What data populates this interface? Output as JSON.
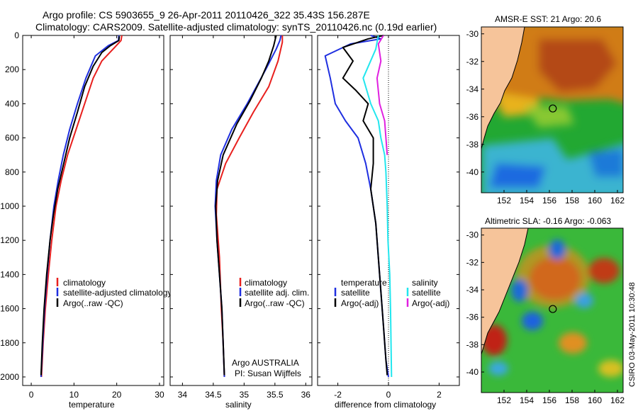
{
  "header": {
    "line1": "Argo profile: CS 5903655_9 26-Apr-2011 20110426_322 35.43S 156.287E",
    "line2": "Climatology: CARS2009. Satellite-adjusted climatology: synTS_20110426.nc (0.19d earlier)"
  },
  "side_stamp": "CSIRO 03-May-2011 10:30:48",
  "colors": {
    "climatology": "#e8201e",
    "satellite": "#1f2fe0",
    "argo": "#000000",
    "sal_satellite": "#22e6ee",
    "sal_argo": "#e020e0",
    "land": "#f6c49a",
    "coast": "#000000"
  },
  "chart_data": [
    {
      "type": "line",
      "id": "temperature",
      "xlabel": "temperature",
      "ylabel": "",
      "xlim": [
        -2,
        31
      ],
      "ylim": [
        2050,
        0
      ],
      "xticks": [
        0,
        10,
        20,
        30
      ],
      "yticks": [
        0,
        200,
        400,
        600,
        800,
        1000,
        1200,
        1400,
        1600,
        1800,
        2000
      ],
      "legend": [
        "climatology",
        "satellite-adjusted climatology",
        "Argo(..raw -QC)"
      ],
      "series": [
        {
          "name": "climatology",
          "color": "climatology",
          "points": [
            [
              21.2,
              0
            ],
            [
              21.0,
              30
            ],
            [
              19.5,
              70
            ],
            [
              16.5,
              150
            ],
            [
              14.5,
              250
            ],
            [
              12.5,
              400
            ],
            [
              10.5,
              550
            ],
            [
              8.5,
              700
            ],
            [
              7.0,
              850
            ],
            [
              5.8,
              1000
            ],
            [
              4.8,
              1200
            ],
            [
              4.0,
              1400
            ],
            [
              3.3,
              1600
            ],
            [
              2.8,
              1800
            ],
            [
              2.4,
              2000
            ]
          ]
        },
        {
          "name": "satellite-adjusted climatology",
          "color": "satellite",
          "points": [
            [
              20.5,
              0
            ],
            [
              20.4,
              30
            ],
            [
              18.0,
              60
            ],
            [
              15.0,
              120
            ],
            [
              12.8,
              250
            ],
            [
              10.8,
              400
            ],
            [
              9.0,
              550
            ],
            [
              7.5,
              700
            ],
            [
              6.3,
              850
            ],
            [
              5.3,
              1000
            ],
            [
              4.4,
              1200
            ],
            [
              3.7,
              1400
            ],
            [
              3.1,
              1600
            ],
            [
              2.7,
              1800
            ],
            [
              2.3,
              2000
            ]
          ]
        },
        {
          "name": "Argo(..raw -QC)",
          "color": "argo",
          "points": [
            [
              20.6,
              5
            ],
            [
              20.5,
              30
            ],
            [
              18.5,
              60
            ],
            [
              16.5,
              100
            ],
            [
              14.5,
              180
            ],
            [
              12.5,
              300
            ],
            [
              10.8,
              450
            ],
            [
              9.0,
              600
            ],
            [
              7.6,
              750
            ],
            [
              6.2,
              900
            ],
            [
              5.2,
              1050
            ],
            [
              4.4,
              1200
            ],
            [
              3.6,
              1400
            ],
            [
              3.0,
              1600
            ],
            [
              2.6,
              1800
            ],
            [
              2.3,
              1990
            ]
          ]
        }
      ]
    },
    {
      "type": "line",
      "id": "salinity",
      "xlabel": "salinity",
      "ylabel": "",
      "xlim": [
        33.8,
        36.1
      ],
      "ylim": [
        2050,
        0
      ],
      "xticks": [
        34,
        34.5,
        35,
        35.5,
        36
      ],
      "legend": [
        "climatology",
        "satellite adj. clim.",
        "Argo(..raw -QC)"
      ],
      "annotation": [
        "Argo AUSTRALIA",
        "PI: Susan Wijffels"
      ],
      "series": [
        {
          "name": "climatology",
          "color": "climatology",
          "points": [
            [
              35.62,
              0
            ],
            [
              35.62,
              40
            ],
            [
              35.55,
              150
            ],
            [
              35.4,
              300
            ],
            [
              35.15,
              450
            ],
            [
              34.92,
              600
            ],
            [
              34.7,
              750
            ],
            [
              34.56,
              900
            ],
            [
              34.55,
              1050
            ],
            [
              34.6,
              1300
            ],
            [
              34.63,
              1600
            ],
            [
              34.66,
              1800
            ],
            [
              34.68,
              2000
            ]
          ]
        },
        {
          "name": "satellite adj. clim.",
          "color": "satellite",
          "points": [
            [
              35.6,
              0
            ],
            [
              35.58,
              30
            ],
            [
              35.52,
              80
            ],
            [
              35.35,
              200
            ],
            [
              35.05,
              400
            ],
            [
              34.8,
              550
            ],
            [
              34.62,
              700
            ],
            [
              34.55,
              850
            ],
            [
              34.53,
              1000
            ],
            [
              34.56,
              1200
            ],
            [
              34.6,
              1400
            ],
            [
              34.64,
              1600
            ],
            [
              34.66,
              1800
            ],
            [
              34.68,
              2000
            ]
          ]
        },
        {
          "name": "Argo(..raw -QC)",
          "color": "argo",
          "points": [
            [
              35.52,
              0
            ],
            [
              35.48,
              60
            ],
            [
              35.4,
              150
            ],
            [
              35.28,
              250
            ],
            [
              35.1,
              380
            ],
            [
              34.88,
              520
            ],
            [
              34.66,
              700
            ],
            [
              34.57,
              850
            ],
            [
              34.54,
              1000
            ],
            [
              34.56,
              1200
            ],
            [
              34.6,
              1400
            ],
            [
              34.64,
              1600
            ],
            [
              34.66,
              1800
            ],
            [
              34.68,
              1990
            ]
          ]
        }
      ]
    },
    {
      "type": "line",
      "id": "difference",
      "xlabel": "difference from climatology",
      "ylabel": "",
      "xlim": [
        -2.8,
        2.8
      ],
      "ylim": [
        2050,
        0
      ],
      "xticks": [
        -2,
        0,
        2
      ],
      "legend_left_title": "temperature",
      "legend_right_title": "salinity",
      "legend": [
        "satellite",
        "Argo(-adj)",
        "satellite",
        "Argo(-adj)"
      ],
      "series": [
        {
          "name": "satellite",
          "group": "temperature",
          "color": "satellite",
          "points": [
            [
              -0.7,
              0
            ],
            [
              -0.3,
              20
            ],
            [
              -1.5,
              50
            ],
            [
              -2.5,
              120
            ],
            [
              -2.3,
              250
            ],
            [
              -2.1,
              400
            ],
            [
              -1.7,
              500
            ],
            [
              -1.2,
              600
            ],
            [
              -0.9,
              750
            ],
            [
              -0.7,
              900
            ],
            [
              -0.5,
              1100
            ],
            [
              -0.4,
              1300
            ],
            [
              -0.3,
              1500
            ],
            [
              -0.2,
              1700
            ],
            [
              -0.1,
              1900
            ],
            [
              0.0,
              2000
            ]
          ]
        },
        {
          "name": "Argo(-adj)",
          "group": "temperature",
          "color": "argo",
          "points": [
            [
              -0.2,
              0
            ],
            [
              -0.8,
              20
            ],
            [
              -1.8,
              70
            ],
            [
              -1.4,
              150
            ],
            [
              -1.8,
              250
            ],
            [
              -1.3,
              320
            ],
            [
              -0.8,
              400
            ],
            [
              -1.0,
              500
            ],
            [
              -0.6,
              600
            ],
            [
              -0.6,
              750
            ],
            [
              -0.7,
              900
            ],
            [
              -0.5,
              1100
            ],
            [
              -0.4,
              1300
            ],
            [
              -0.3,
              1500
            ],
            [
              -0.2,
              1700
            ],
            [
              -0.1,
              1900
            ],
            [
              -0.05,
              1990
            ]
          ]
        },
        {
          "name": "satellite",
          "group": "salinity",
          "color": "sal_satellite",
          "points": [
            [
              -0.4,
              0
            ],
            [
              -0.5,
              80
            ],
            [
              -1.0,
              250
            ],
            [
              -0.7,
              400
            ],
            [
              -0.4,
              500
            ],
            [
              -0.3,
              600
            ],
            [
              -0.15,
              700
            ],
            [
              -0.1,
              800
            ],
            [
              -0.05,
              1000
            ],
            [
              -0.02,
              1200
            ],
            [
              0.05,
              1400
            ],
            [
              0.08,
              1600
            ],
            [
              0.1,
              1800
            ],
            [
              0.12,
              2000
            ]
          ]
        },
        {
          "name": "Argo(-adj)",
          "group": "salinity",
          "color": "sal_argo",
          "points": [
            [
              -0.2,
              0
            ],
            [
              -0.4,
              50
            ],
            [
              -0.3,
              150
            ],
            [
              -0.45,
              250
            ],
            [
              -0.35,
              400
            ],
            [
              -0.15,
              500
            ],
            [
              -0.1,
              600
            ],
            [
              -0.05,
              700
            ]
          ]
        }
      ]
    },
    {
      "type": "heatmap",
      "id": "sst_map",
      "title": "AMSR-E SST: 21 Argo: 20.6",
      "xlim": [
        150,
        162.5
      ],
      "ylim": [
        -41.5,
        -29.5
      ],
      "xticks": [
        152,
        154,
        156,
        158,
        160,
        162
      ],
      "yticks": [
        -30,
        -32,
        -34,
        -36,
        -38,
        -40
      ],
      "marker": [
        156.3,
        -35.4
      ]
    },
    {
      "type": "heatmap",
      "id": "sla_map",
      "title": "Altimetric SLA: -0.16 Argo: -0.063",
      "xlim": [
        150,
        162.5
      ],
      "ylim": [
        -41.5,
        -29.5
      ],
      "xticks": [
        152,
        154,
        156,
        158,
        160,
        162
      ],
      "yticks": [
        -30,
        -32,
        -34,
        -36,
        -38,
        -40
      ],
      "marker": [
        156.3,
        -35.4
      ]
    }
  ]
}
